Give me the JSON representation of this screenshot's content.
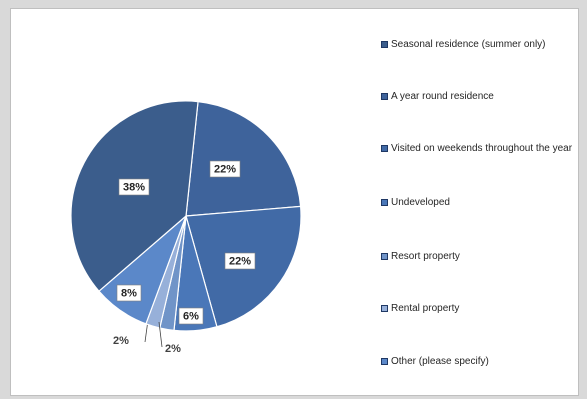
{
  "chart_data": {
    "type": "pie",
    "title": "",
    "categories": [
      "Seasonal residence (summer only)",
      "A year round residence",
      "Visited on weekends throughout the year",
      "Undeveloped",
      "Resort property",
      "Rental property",
      "Other (please specify)"
    ],
    "values": [
      38,
      22,
      22,
      6,
      2,
      2,
      8
    ],
    "value_labels": [
      "38%",
      "22%",
      "22%",
      "6%",
      "2%",
      "2%",
      "8%"
    ],
    "colors": [
      "#3b5d8c",
      "#3e639b",
      "#416aa6",
      "#4a77b8",
      "#7094c8",
      "#97b0d9",
      "#5b88c9"
    ],
    "legend_position": "right",
    "label_style": "data labels inside with leader lines for small slices"
  }
}
